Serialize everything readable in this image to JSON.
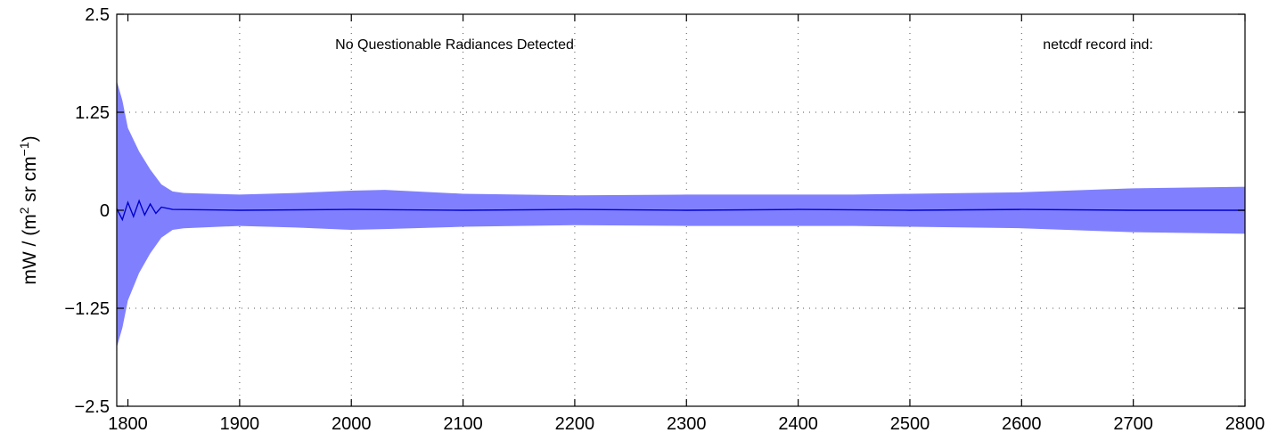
{
  "chart_data": {
    "type": "area",
    "title": "",
    "xlabel": "",
    "ylabel": {
      "prefix": "mW / (m",
      "sup1": "2",
      "middle": " sr cm",
      "sup2": "−1",
      "suffix": ")"
    },
    "xlim": [
      1790,
      2800
    ],
    "ylim": [
      -2.5,
      2.5
    ],
    "x_ticks": [
      1800,
      1900,
      2000,
      2100,
      2200,
      2300,
      2400,
      2500,
      2600,
      2700,
      2800
    ],
    "x_tick_labels": [
      "1800",
      "1900",
      "2000",
      "2100",
      "2200",
      "2300",
      "2400",
      "2500",
      "2600",
      "2700",
      "2800"
    ],
    "y_ticks": [
      -2.5,
      -1.25,
      0,
      1.25,
      2.5
    ],
    "y_tick_labels": [
      "−2.5",
      "−1.25",
      "0",
      "1.25",
      "2.5"
    ],
    "grid": true,
    "annotations": [
      "No Questionable Radiances Detected",
      "netcdf record ind:"
    ],
    "series": [
      {
        "kind": "band",
        "color": "#8080ff",
        "x": [
          1790,
          1795,
          1800,
          1810,
          1820,
          1830,
          1840,
          1850,
          1900,
          1950,
          2000,
          2030,
          2100,
          2200,
          2300,
          2400,
          2450,
          2500,
          2600,
          2700,
          2800
        ],
        "upper": [
          1.65,
          1.4,
          1.05,
          0.75,
          0.52,
          0.33,
          0.24,
          0.22,
          0.2,
          0.22,
          0.25,
          0.26,
          0.21,
          0.19,
          0.2,
          0.2,
          0.2,
          0.21,
          0.23,
          0.28,
          0.3
        ],
        "lower": [
          -1.75,
          -1.5,
          -1.15,
          -0.8,
          -0.55,
          -0.35,
          -0.25,
          -0.23,
          -0.2,
          -0.22,
          -0.25,
          -0.24,
          -0.21,
          -0.19,
          -0.2,
          -0.2,
          -0.2,
          -0.21,
          -0.23,
          -0.28,
          -0.3
        ]
      },
      {
        "kind": "line",
        "color": "#0000cc",
        "x": [
          1790,
          1795,
          1800,
          1805,
          1810,
          1815,
          1820,
          1825,
          1830,
          1840,
          1900,
          2000,
          2100,
          2200,
          2300,
          2400,
          2500,
          2600,
          2700,
          2800
        ],
        "y": [
          0.02,
          -0.12,
          0.1,
          -0.08,
          0.12,
          -0.06,
          0.08,
          -0.04,
          0.04,
          0.01,
          0.0,
          0.01,
          0.0,
          0.01,
          0.0,
          0.01,
          0.0,
          0.01,
          0.0,
          0.0
        ]
      }
    ]
  }
}
